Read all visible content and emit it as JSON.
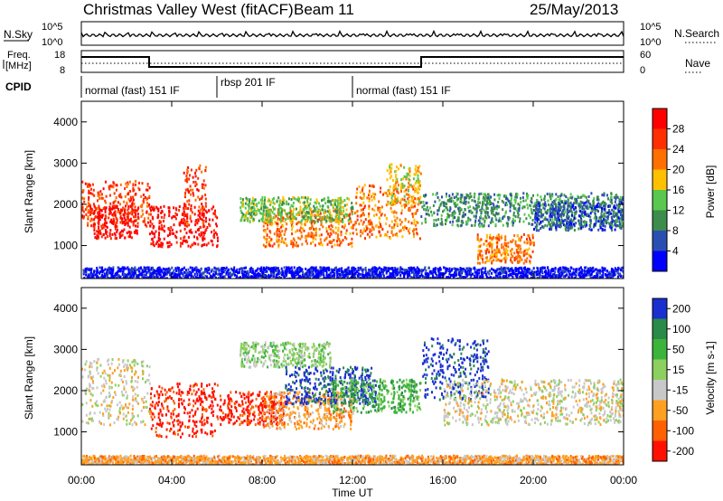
{
  "header": {
    "station": "Christmas Valley West (fitACF)",
    "beam": "Beam 11",
    "date": "25/May/2013"
  },
  "top_panels": {
    "nsky_label": "N.Sky",
    "nsky_ticks": [
      "10^5",
      "10^0"
    ],
    "nsearch_label": "N.Search",
    "nsearch_ticks": [
      "10^5",
      "10^0"
    ],
    "freq_label_1": "Freq.",
    "freq_label_2": "[MHz]",
    "freq_ticks": [
      "18",
      "8"
    ],
    "nave_label": "Nave",
    "nave_ticks": [
      "60",
      "0"
    ],
    "cpid_label": "CPID",
    "cpid_segments": [
      {
        "label": "normal (fast) 151 IF",
        "start": 0,
        "end": 6
      },
      {
        "label": "rbsp 201 IF",
        "start": 6,
        "end": 12
      },
      {
        "label": "normal (fast) 151 IF",
        "start": 12,
        "end": 24
      }
    ]
  },
  "chart_data": [
    {
      "type": "heatmap",
      "title": "",
      "xlabel": "Time UT",
      "ylabel": "Slant Range [km]",
      "xlim": [
        0,
        24
      ],
      "ylim": [
        200,
        4500
      ],
      "x_ticks": [
        "00:00",
        "04:00",
        "08:00",
        "12:00",
        "16:00",
        "20:00",
        "00:00"
      ],
      "y_ticks": [
        "1000",
        "2000",
        "3000",
        "4000"
      ],
      "colorbar_label": "Power [dB]",
      "colorbar_ticks": [
        "4",
        "8",
        "12",
        "16",
        "20",
        "24",
        "28"
      ],
      "colors": [
        "#0000ff",
        "#2b4fb0",
        "#3c8c4c",
        "#59c84e",
        "#ffc000",
        "#ff7000",
        "#ff3000",
        "#ff0000"
      ]
    },
    {
      "type": "heatmap",
      "title": "",
      "xlabel": "Time UT",
      "ylabel": "Slant Range [km]",
      "xlim": [
        0,
        24
      ],
      "ylim": [
        200,
        4500
      ],
      "x_ticks": [
        "00:00",
        "04:00",
        "08:00",
        "12:00",
        "16:00",
        "20:00",
        "00:00"
      ],
      "y_ticks": [
        "1000",
        "2000",
        "3000",
        "4000"
      ],
      "colorbar_label": "Velocity [m s-1]",
      "colorbar_ticks": [
        "200",
        "100",
        "50",
        "15",
        "-15",
        "-50",
        "-100",
        "-200"
      ],
      "colors": [
        "#1a2fd0",
        "#2a8a4a",
        "#3cb43c",
        "#8cd060",
        "#c8c8c8",
        "#ffa020",
        "#ff6000",
        "#ff1000"
      ]
    }
  ],
  "x_axis_title": "Time UT"
}
